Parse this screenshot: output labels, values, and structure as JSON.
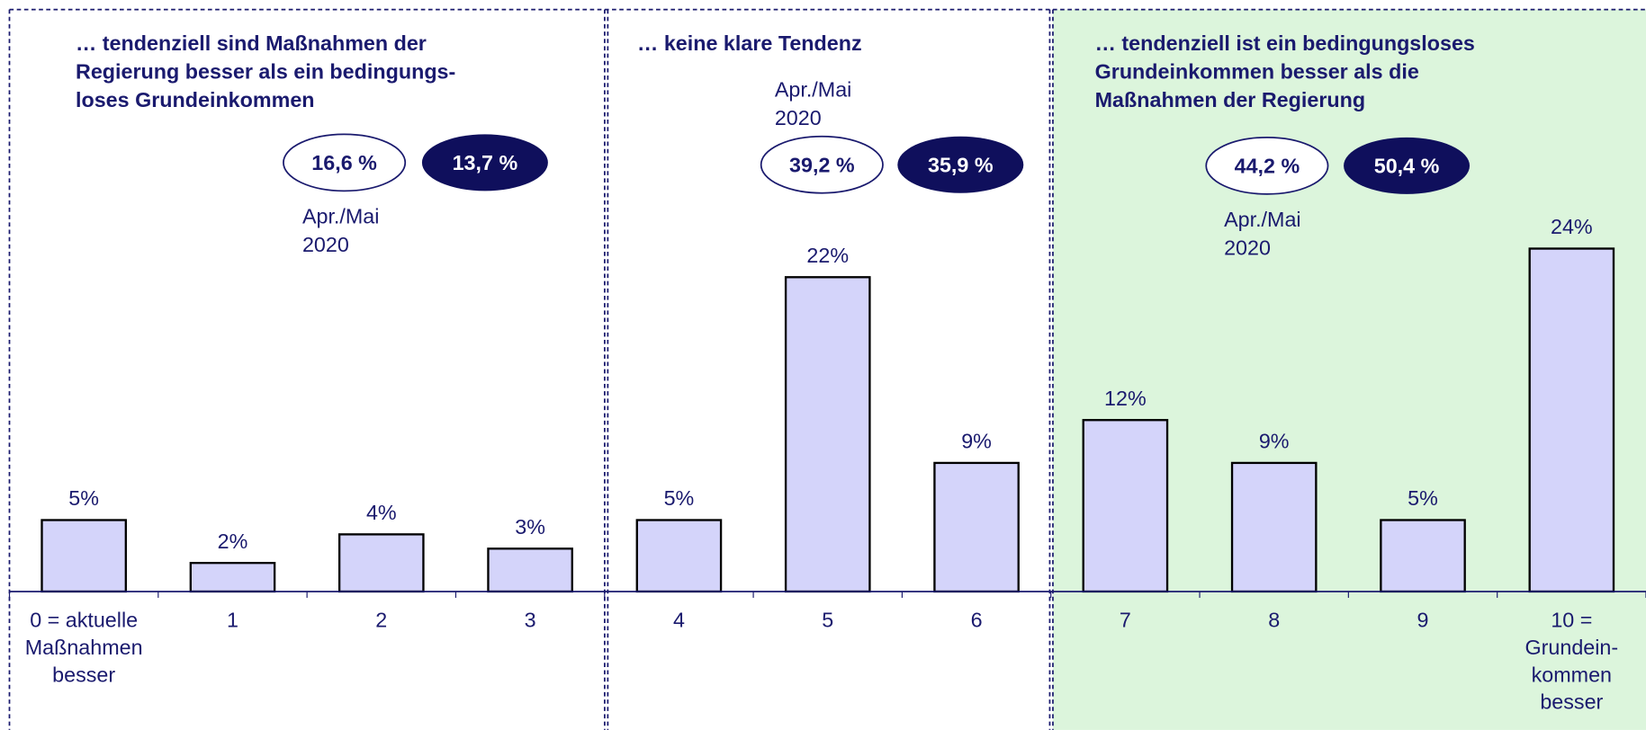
{
  "chart_data": {
    "type": "bar",
    "categories": [
      "0 = aktuelle\nMaßnahmen\nbesser",
      "1",
      "2",
      "3",
      "4",
      "5",
      "6",
      "7",
      "8",
      "9",
      "10 =\nGrundein-\nkommen\nbesser"
    ],
    "values": [
      5,
      2,
      4,
      3,
      5,
      22,
      9,
      12,
      9,
      5,
      24
    ],
    "value_labels": [
      "5%",
      "2%",
      "4%",
      "3%",
      "5%",
      "22%",
      "9%",
      "12%",
      "9%",
      "5%",
      "24%"
    ],
    "color": "#d4d4fa",
    "ylim": [
      0,
      24
    ]
  },
  "panels": [
    {
      "title": "… tendenziell sind Maßnahmen der\nRegierung besser als ein bedingungs-\nloses Grundeinkommen",
      "previous": "16,6 %",
      "current": "13,7 %",
      "previous_label": "Apr./Mai\n2020"
    },
    {
      "title": "… keine klare Tendenz",
      "previous": "39,2 %",
      "current": "35,9 %",
      "previous_label": "Apr./Mai\n2020"
    },
    {
      "title": "… tendenziell ist ein bedingungsloses\nGrundeinkommen besser als die\nMaßnahmen der Regierung",
      "previous": "44,2 %",
      "current": "50,4 %",
      "previous_label": "Apr./Mai\n2020"
    }
  ]
}
